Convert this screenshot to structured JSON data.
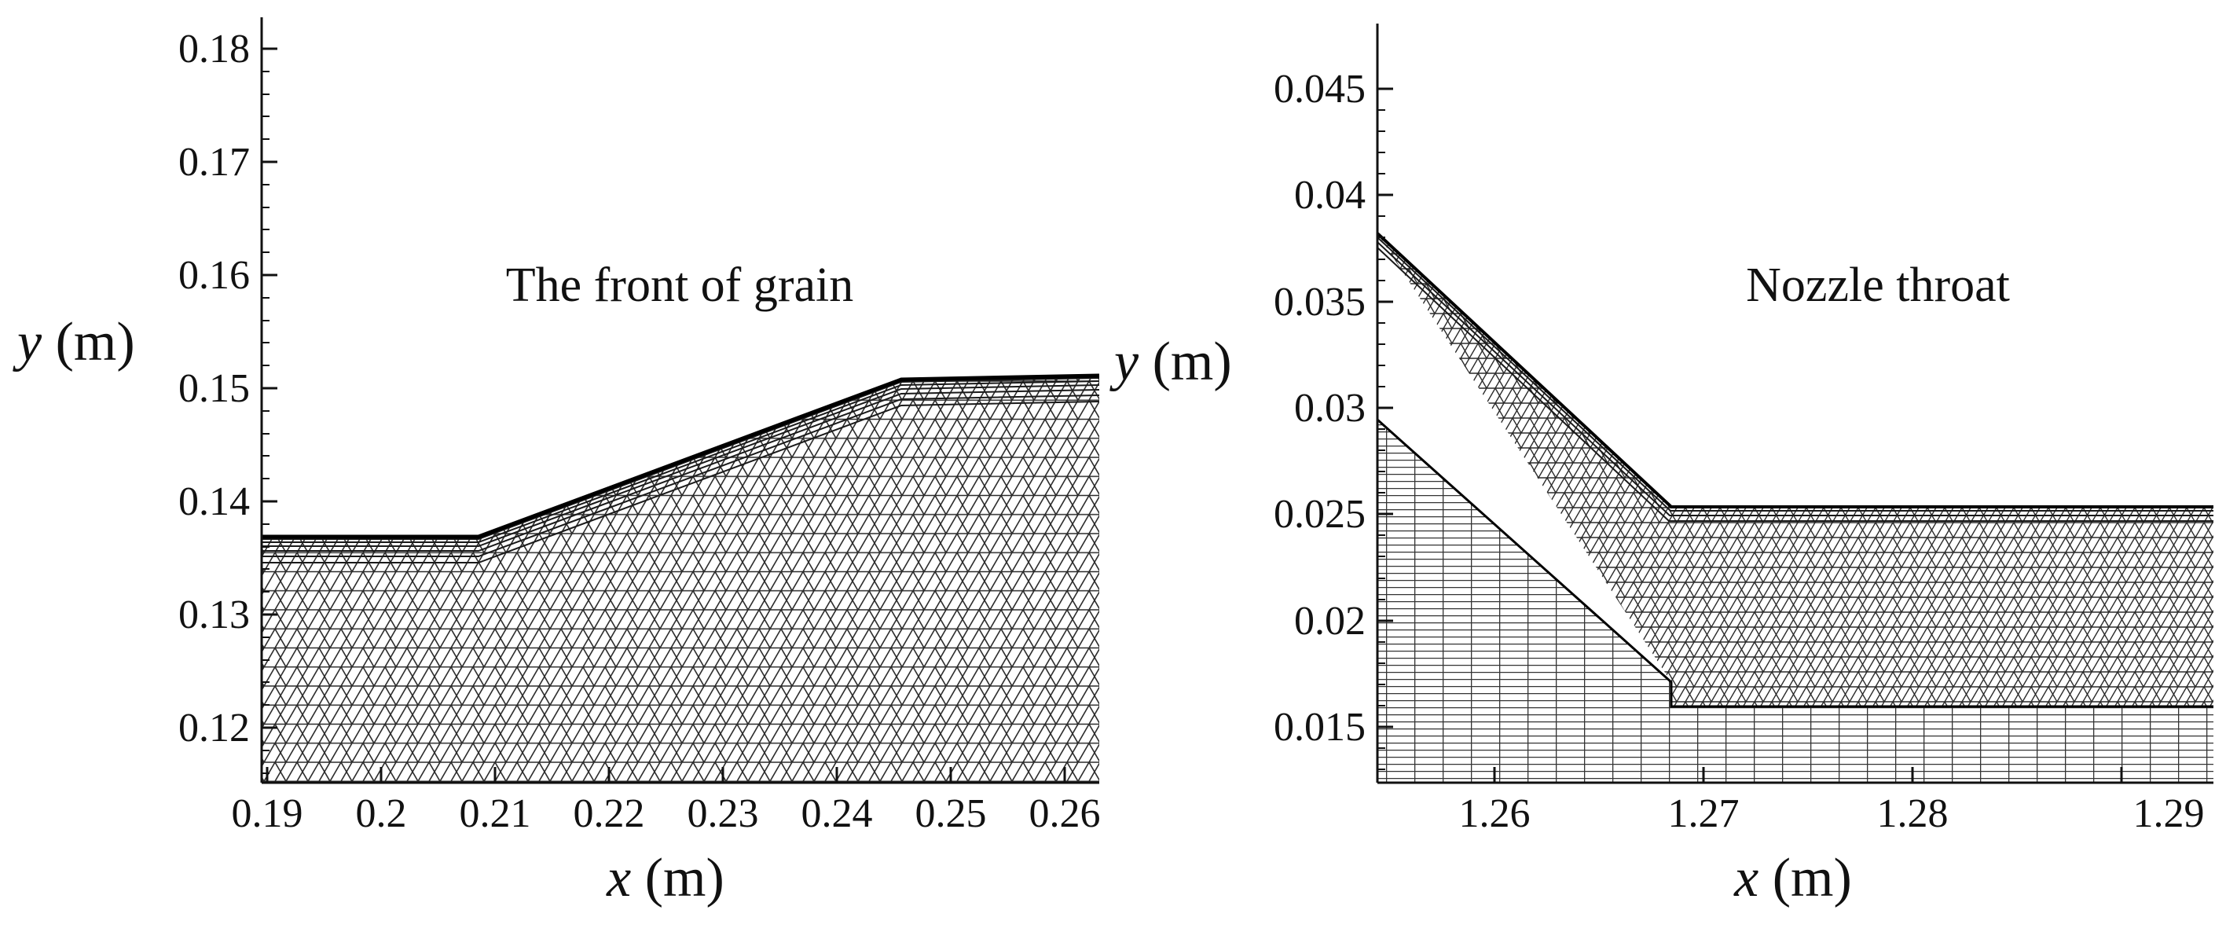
{
  "figure": {
    "colors": {
      "ink": "#111111",
      "mesh": "#2a2a2a",
      "background": "#ffffff"
    }
  },
  "left_panel": {
    "title": "The front of grain",
    "x_axis": {
      "var": "x",
      "unit": " (m)",
      "ticks": [
        "0.19",
        "0.2",
        "0.21",
        "0.22",
        "0.23",
        "0.24",
        "0.25",
        "0.26"
      ]
    },
    "y_axis": {
      "var": "y",
      "unit": " (m)",
      "ticks": [
        "0.12",
        "0.13",
        "0.14",
        "0.15",
        "0.16",
        "0.17",
        "0.18"
      ]
    }
  },
  "right_panel": {
    "title": "Nozzle throat",
    "x_axis": {
      "var": "x",
      "unit": " (m)",
      "ticks": [
        "1.26",
        "1.27",
        "1.28",
        "1.29"
      ]
    },
    "y_axis": {
      "var": "y",
      "unit": " (m)",
      "ticks": [
        "0.015",
        "0.02",
        "0.025",
        "0.03",
        "0.035",
        "0.04",
        "0.045"
      ]
    }
  }
}
